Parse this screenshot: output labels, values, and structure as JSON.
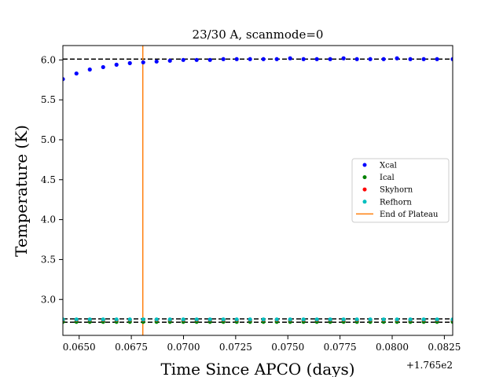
{
  "chart_data": {
    "type": "scatter",
    "title": "23/30 A, scanmode=0",
    "xlabel": "Time Since APCO (days)",
    "ylabel": "Temperature (K)",
    "x_offset_label": "+1.765e2",
    "x_offset": 176.5,
    "xlim": [
      0.06422,
      0.0829
    ],
    "ylim": [
      2.55,
      6.18
    ],
    "xticks": [
      0.065,
      0.0675,
      0.07,
      0.0725,
      0.075,
      0.0775,
      0.08,
      0.0825
    ],
    "xtick_labels": [
      "0.0650",
      "0.0675",
      "0.0700",
      "0.0725",
      "0.0750",
      "0.0775",
      "0.0800",
      "0.0825"
    ],
    "yticks": [
      3.0,
      3.5,
      4.0,
      4.5,
      5.0,
      5.5,
      6.0
    ],
    "ytick_labels": [
      "3.0",
      "3.5",
      "4.0",
      "4.5",
      "5.0",
      "5.5",
      "6.0"
    ],
    "hlines": [
      {
        "y": 6.01,
        "color": "#000000",
        "style": "dashed"
      },
      {
        "y": 2.757,
        "color": "#000000",
        "style": "dashed"
      },
      {
        "y": 2.715,
        "color": "#000000",
        "style": "dashed"
      }
    ],
    "vline": {
      "x": 0.06805,
      "color": "#ff7f0e",
      "name": "End of Plateau"
    },
    "x": [
      0.06422,
      0.06487,
      0.06551,
      0.06615,
      0.06679,
      0.06743,
      0.06807,
      0.06871,
      0.06935,
      0.06999,
      0.07063,
      0.07127,
      0.07191,
      0.07255,
      0.07319,
      0.07383,
      0.07447,
      0.07511,
      0.07575,
      0.07639,
      0.07703,
      0.07767,
      0.07831,
      0.07895,
      0.07959,
      0.08023,
      0.08087,
      0.08151,
      0.08215,
      0.0829
    ],
    "series": [
      {
        "name": "Xcal",
        "color": "#0000ff",
        "values": [
          5.76,
          5.83,
          5.88,
          5.91,
          5.94,
          5.96,
          5.97,
          5.98,
          5.99,
          6.0,
          6.0,
          6.0,
          6.01,
          6.01,
          6.01,
          6.01,
          6.01,
          6.02,
          6.01,
          6.01,
          6.01,
          6.02,
          6.01,
          6.01,
          6.01,
          6.02,
          6.01,
          6.01,
          6.01,
          6.01
        ]
      },
      {
        "name": "Ical",
        "color": "#008000",
        "values": [
          2.72,
          2.72,
          2.72,
          2.72,
          2.72,
          2.72,
          2.72,
          2.72,
          2.72,
          2.72,
          2.72,
          2.72,
          2.72,
          2.72,
          2.72,
          2.72,
          2.72,
          2.72,
          2.72,
          2.72,
          2.72,
          2.72,
          2.72,
          2.72,
          2.72,
          2.72,
          2.72,
          2.72,
          2.72,
          2.72
        ]
      },
      {
        "name": "Skyhorn",
        "color": "#ff0000",
        "values": [
          2.745,
          2.745,
          2.745,
          2.745,
          2.745,
          2.745,
          2.745,
          2.745,
          2.745,
          2.745,
          2.745,
          2.745,
          2.745,
          2.745,
          2.745,
          2.745,
          2.745,
          2.745,
          2.745,
          2.745,
          2.745,
          2.745,
          2.745,
          2.745,
          2.745,
          2.745,
          2.745,
          2.745,
          2.745,
          2.745
        ]
      },
      {
        "name": "Refhorn",
        "color": "#00bfbf",
        "values": [
          2.75,
          2.75,
          2.75,
          2.75,
          2.75,
          2.75,
          2.75,
          2.75,
          2.75,
          2.75,
          2.75,
          2.75,
          2.75,
          2.75,
          2.75,
          2.75,
          2.75,
          2.75,
          2.75,
          2.75,
          2.75,
          2.75,
          2.75,
          2.75,
          2.75,
          2.75,
          2.75,
          2.75,
          2.75,
          2.75
        ]
      }
    ],
    "legend_position": "right",
    "legend_entries": [
      "Xcal",
      "Ical",
      "Skyhorn",
      "Refhorn",
      "End of Plateau"
    ],
    "grid": false
  }
}
